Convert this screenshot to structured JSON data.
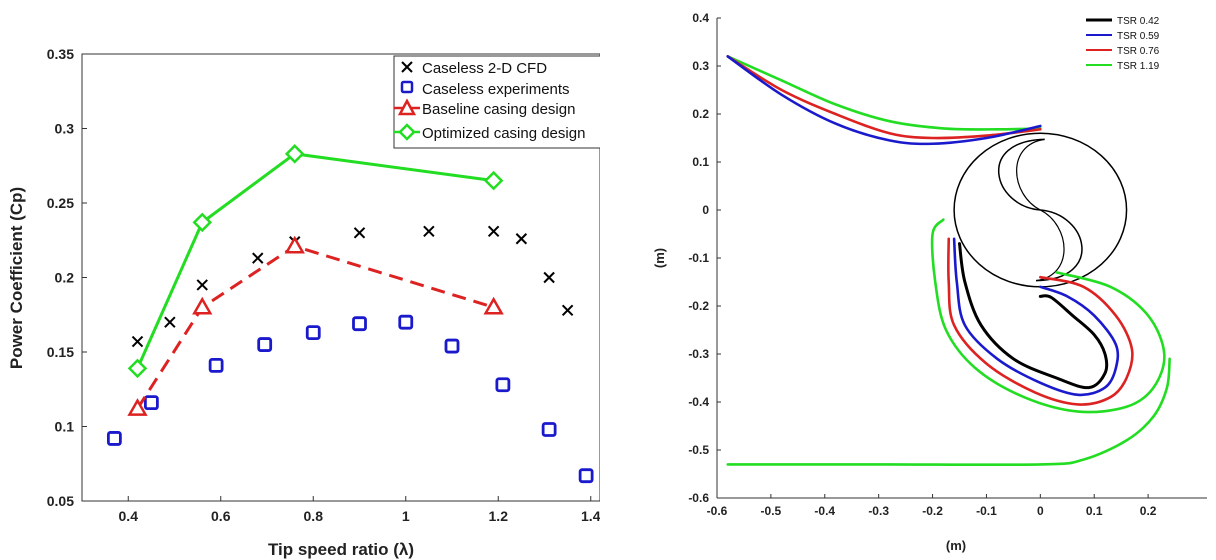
{
  "chart_data": [
    {
      "type": "scatter",
      "xlabel": "Tip speed ratio (λ)",
      "ylabel": "Power Coefficient (Cp)",
      "xlim": [
        0.3,
        1.42
      ],
      "ylim": [
        0.05,
        0.35
      ],
      "xticks": [
        "0.4",
        "0.6",
        "0.8",
        "1",
        "1.2",
        "1.4"
      ],
      "yticks": [
        "0.05",
        "0.1",
        "0.15",
        "0.2",
        "0.25",
        "0.3",
        "0.35"
      ],
      "legend_position": "top-right",
      "grid": false,
      "series": [
        {
          "name": "Caseless 2-D CFD",
          "color": "#000000",
          "marker": "x",
          "line": false,
          "points": [
            [
              0.42,
              0.157
            ],
            [
              0.49,
              0.17
            ],
            [
              0.56,
              0.195
            ],
            [
              0.68,
              0.213
            ],
            [
              0.76,
              0.224
            ],
            [
              0.9,
              0.23
            ],
            [
              1.05,
              0.231
            ],
            [
              1.19,
              0.231
            ],
            [
              1.25,
              0.226
            ],
            [
              1.31,
              0.2
            ],
            [
              1.35,
              0.178
            ]
          ]
        },
        {
          "name": "Caseless experiments",
          "color": "#1a1acc",
          "marker": "square",
          "line": false,
          "points": [
            [
              0.37,
              0.092
            ],
            [
              0.45,
              0.116
            ],
            [
              0.59,
              0.141
            ],
            [
              0.695,
              0.155
            ],
            [
              0.8,
              0.163
            ],
            [
              0.9,
              0.169
            ],
            [
              1.0,
              0.17
            ],
            [
              1.1,
              0.154
            ],
            [
              1.21,
              0.128
            ],
            [
              1.31,
              0.098
            ],
            [
              1.39,
              0.067
            ]
          ]
        },
        {
          "name": "Baseline casing design",
          "color": "#dd2222",
          "marker": "triangle",
          "line": "dashed",
          "points": [
            [
              0.42,
              0.112
            ],
            [
              0.56,
              0.18
            ],
            [
              0.76,
              0.221
            ],
            [
              1.19,
              0.18
            ]
          ]
        },
        {
          "name": "Optimized casing design",
          "color": "#22dd22",
          "marker": "diamond",
          "line": "solid",
          "points": [
            [
              0.42,
              0.139
            ],
            [
              0.56,
              0.237
            ],
            [
              0.76,
              0.283
            ],
            [
              1.19,
              0.265
            ]
          ]
        }
      ]
    },
    {
      "type": "line",
      "xlabel": "(m)",
      "ylabel": "(m)",
      "xlim": [
        -0.6,
        0.3
      ],
      "ylim": [
        -0.6,
        0.4
      ],
      "xticks": [
        "-0.6",
        "-0.5",
        "-0.4",
        "-0.3",
        "-0.2",
        "-0.1",
        "0",
        "0.1",
        "0.2"
      ],
      "yticks": [
        "0.4",
        "0.3",
        "0.2",
        "0.1",
        "0",
        "-0.1",
        "-0.2",
        "-0.3",
        "-0.4",
        "-0.5",
        "-0.6"
      ],
      "legend_position": "top-right",
      "grid": false,
      "rotor": {
        "center": [
          0.0,
          0.0
        ],
        "radius": 0.16,
        "color": "#000000"
      },
      "series": [
        {
          "name": "TSR 0.42",
          "color": "#000000",
          "lower_wall": [
            [
              0.0,
              -0.18
            ],
            [
              0.02,
              -0.182
            ],
            [
              0.06,
              -0.22
            ],
            [
              0.1,
              -0.26
            ],
            [
              0.12,
              -0.3
            ],
            [
              0.12,
              -0.34
            ],
            [
              0.09,
              -0.37
            ],
            [
              0.03,
              -0.35
            ],
            [
              -0.05,
              -0.31
            ],
            [
              -0.11,
              -0.24
            ],
            [
              -0.14,
              -0.15
            ],
            [
              -0.15,
              -0.07
            ]
          ]
        },
        {
          "name": "TSR 0.59",
          "color": "#1a1acc",
          "upper_wall": [
            [
              -0.58,
              0.32
            ],
            [
              -0.48,
              0.24
            ],
            [
              -0.38,
              0.18
            ],
            [
              -0.28,
              0.145
            ],
            [
              -0.2,
              0.138
            ],
            [
              -0.1,
              0.15
            ],
            [
              0.0,
              0.175
            ]
          ],
          "lower_wall": [
            [
              0.0,
              -0.16
            ],
            [
              0.05,
              -0.18
            ],
            [
              0.1,
              -0.22
            ],
            [
              0.14,
              -0.28
            ],
            [
              0.14,
              -0.33
            ],
            [
              0.12,
              -0.37
            ],
            [
              0.07,
              -0.385
            ],
            [
              0.0,
              -0.36
            ],
            [
              -0.08,
              -0.31
            ],
            [
              -0.14,
              -0.24
            ],
            [
              -0.155,
              -0.15
            ],
            [
              -0.16,
              -0.06
            ]
          ]
        },
        {
          "name": "TSR 0.76",
          "color": "#dd2222",
          "upper_wall": [
            [
              -0.58,
              0.32
            ],
            [
              -0.48,
              0.25
            ],
            [
              -0.38,
              0.2
            ],
            [
              -0.28,
              0.16
            ],
            [
              -0.2,
              0.15
            ],
            [
              -0.1,
              0.155
            ],
            [
              0.0,
              0.168
            ]
          ],
          "lower_wall": [
            [
              0.0,
              -0.14
            ],
            [
              0.08,
              -0.16
            ],
            [
              0.14,
              -0.22
            ],
            [
              0.17,
              -0.29
            ],
            [
              0.16,
              -0.35
            ],
            [
              0.13,
              -0.39
            ],
            [
              0.07,
              -0.405
            ],
            [
              -0.01,
              -0.38
            ],
            [
              -0.1,
              -0.32
            ],
            [
              -0.16,
              -0.24
            ],
            [
              -0.17,
              -0.15
            ],
            [
              -0.17,
              -0.06
            ]
          ]
        },
        {
          "name": "TSR 1.19",
          "color": "#22dd22",
          "upper_wall": [
            [
              -0.58,
              0.32
            ],
            [
              -0.48,
              0.27
            ],
            [
              -0.38,
              0.22
            ],
            [
              -0.28,
              0.185
            ],
            [
              -0.18,
              0.17
            ],
            [
              -0.08,
              0.168
            ],
            [
              0.0,
              0.17
            ]
          ],
          "lower_wall": [
            [
              0.03,
              -0.13
            ],
            [
              0.13,
              -0.16
            ],
            [
              0.2,
              -0.22
            ],
            [
              0.23,
              -0.3
            ],
            [
              0.21,
              -0.37
            ],
            [
              0.16,
              -0.41
            ],
            [
              0.07,
              -0.42
            ],
            [
              -0.03,
              -0.39
            ],
            [
              -0.12,
              -0.33
            ],
            [
              -0.175,
              -0.25
            ],
            [
              -0.195,
              -0.15
            ],
            [
              -0.2,
              -0.05
            ],
            [
              -0.18,
              -0.02
            ]
          ],
          "outlet_wall": [
            [
              -0.58,
              -0.53
            ],
            [
              -0.3,
              -0.53
            ],
            [
              0.0,
              -0.53
            ],
            [
              0.08,
              -0.52
            ],
            [
              0.16,
              -0.48
            ],
            [
              0.21,
              -0.43
            ],
            [
              0.235,
              -0.37
            ],
            [
              0.24,
              -0.31
            ]
          ]
        }
      ]
    }
  ]
}
